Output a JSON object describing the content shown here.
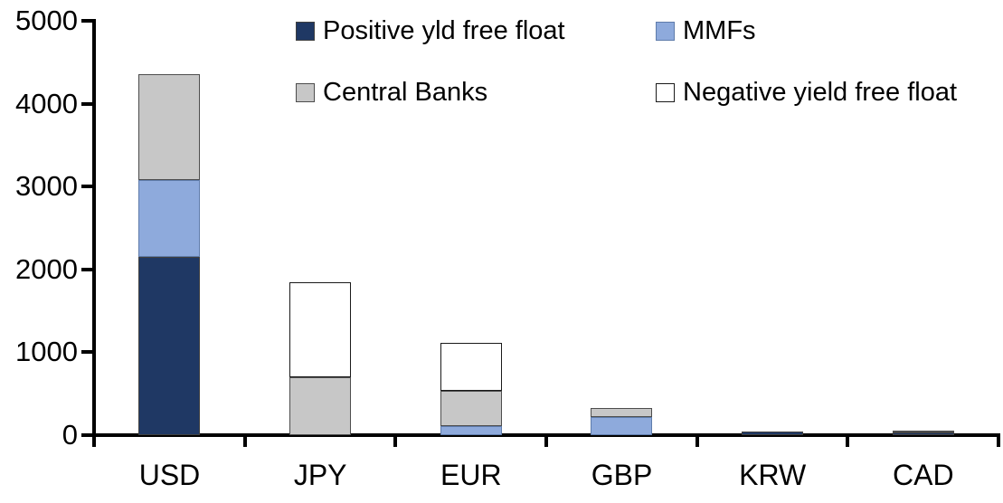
{
  "chart_data": {
    "type": "bar",
    "stacked": true,
    "title": "",
    "xlabel": "",
    "ylabel": "",
    "categories": [
      "USD",
      "JPY",
      "EUR",
      "GBP",
      "KRW",
      "CAD"
    ],
    "series": [
      {
        "name": "Positive yld free float",
        "color": "#1F3864",
        "border_color": "#404040",
        "values": [
          2150,
          0,
          0,
          0,
          40,
          35
        ]
      },
      {
        "name": "MMFs",
        "color": "#8EAADC",
        "border_color": "#5F7CAB",
        "values": [
          930,
          0,
          110,
          220,
          0,
          0
        ]
      },
      {
        "name": "Central Banks",
        "color": "#C7C7C7",
        "border_color": "#4D4D4D",
        "values": [
          1280,
          700,
          430,
          110,
          0,
          25
        ]
      },
      {
        "name": "Negative yield free float",
        "color": "#FFFFFF",
        "border_color": "#1A1A1A",
        "values": [
          0,
          1140,
          570,
          0,
          0,
          0
        ]
      }
    ],
    "stack_order_bottom_to_top": [
      "Positive yld free float",
      "MMFs",
      "Central Banks",
      "Negative yield free float"
    ],
    "totals": [
      4360,
      1840,
      1110,
      330,
      40,
      60
    ],
    "ylim": [
      0,
      5000
    ],
    "yticks": [
      0,
      1000,
      2000,
      3000,
      4000,
      5000
    ],
    "grid": false,
    "legend_position": "top",
    "axis_color": "#000000",
    "background_color": "#FFFFFF"
  }
}
